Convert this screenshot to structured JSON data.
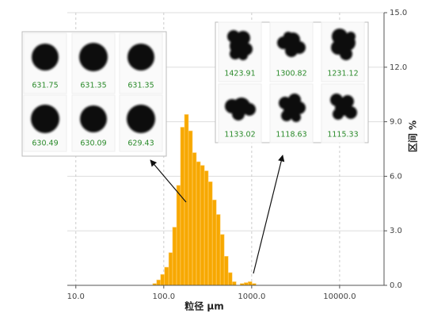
{
  "chart_data": {
    "type": "histogram",
    "xlabel": "粒径 µm",
    "ylabel": "区间 %",
    "xscale": "log",
    "grid": true,
    "color": "#f7a800",
    "bins": [
      75,
      83,
      92,
      102,
      114,
      126,
      140,
      155,
      172,
      191,
      212,
      235,
      261,
      290,
      321,
      357,
      396,
      439,
      487,
      541,
      600,
      666,
      739,
      820,
      910,
      1010,
      1121
    ],
    "values": [
      0.1,
      0.3,
      0.6,
      1.0,
      1.8,
      3.2,
      5.5,
      8.7,
      9.4,
      8.5,
      7.3,
      6.8,
      6.6,
      6.3,
      5.7,
      4.7,
      3.9,
      2.8,
      1.6,
      0.7,
      0.2,
      0,
      0.1,
      0.15,
      0.2,
      0.1
    ],
    "xlim": [
      8,
      32000
    ],
    "xticks": [
      {
        "value": 10,
        "label": "10.0"
      },
      {
        "value": 100,
        "label": "100.0"
      },
      {
        "value": 1000,
        "label": "1000.0"
      },
      {
        "value": 10000,
        "label": "10000.0"
      }
    ],
    "ylim": [
      0,
      15
    ],
    "yticks": [
      {
        "value": 0,
        "label": "0.0"
      },
      {
        "value": 3,
        "label": "3.0"
      },
      {
        "value": 6,
        "label": "6.0"
      },
      {
        "value": 9,
        "label": "9.0"
      },
      {
        "value": 12,
        "label": "12.0"
      },
      {
        "value": 15,
        "label": "15.0"
      }
    ],
    "insets": [
      {
        "labels": [
          "631.75",
          "631.35",
          "631.35",
          "630.49",
          "630.09",
          "629.43"
        ]
      },
      {
        "labels": [
          "1423.91",
          "1300.82",
          "1231.12",
          "1133.02",
          "1118.63",
          "1115.33"
        ]
      }
    ]
  }
}
